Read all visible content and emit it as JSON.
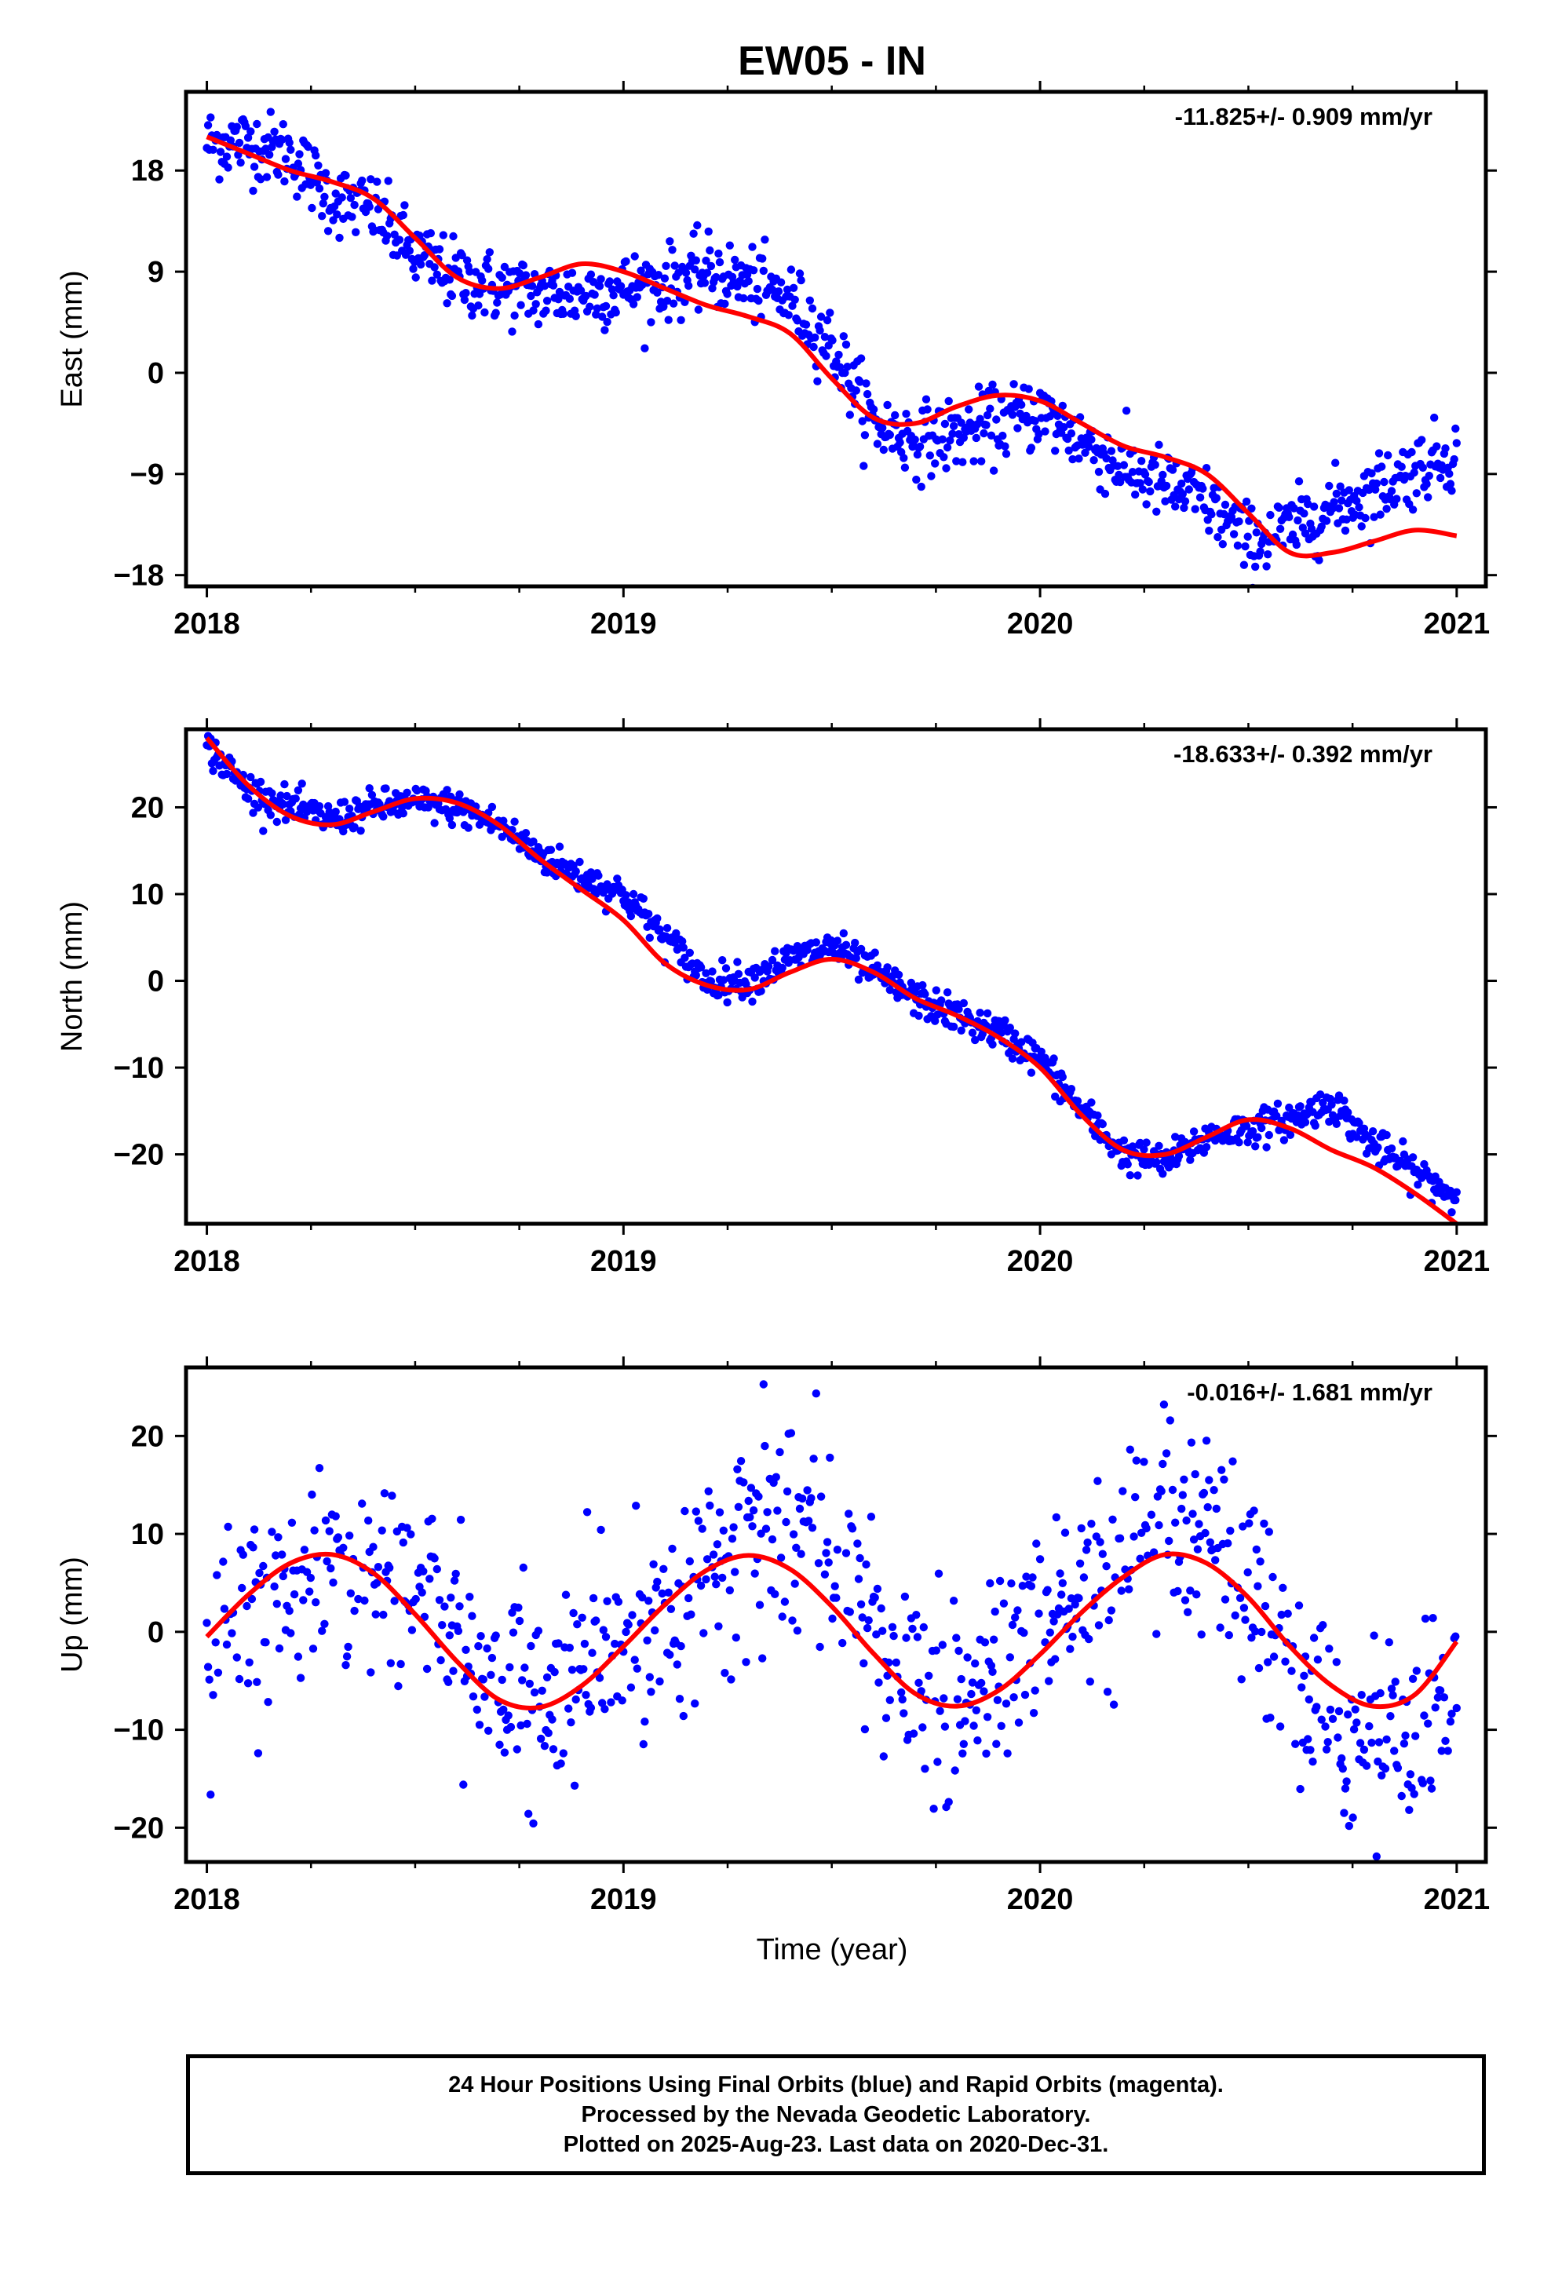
{
  "title": "EW05 - IN",
  "xlabel": "Time (year)",
  "footer": {
    "line1": "24 Hour Positions Using Final Orbits (blue) and Rapid Orbits (magenta).",
    "line2": "Processed by the Nevada Geodetic Laboratory.",
    "line3": "Plotted on 2025-Aug-23. Last data on 2020-Dec-31."
  },
  "colors": {
    "observations": "#0000ff",
    "model": "#ff0000",
    "axes": "#000000"
  },
  "chart_data": [
    {
      "type": "scatter",
      "ylabel": "East (mm)",
      "rate_label": "-11.825+/- 0.909 mm/yr",
      "xlim": [
        2017.95,
        2021.07
      ],
      "ylim": [
        -19,
        25
      ],
      "xticks": [
        "2018",
        "2019",
        "2020",
        "2021"
      ],
      "yticks": [
        -18,
        -9,
        0,
        9,
        18
      ],
      "grid": false,
      "series": [
        {
          "kind": "points",
          "color": "#0000ff",
          "x": [
            2018.0,
            2018.1,
            2018.2,
            2018.3,
            2018.4,
            2018.5,
            2018.6,
            2018.7,
            2018.8,
            2018.9,
            2019.0,
            2019.1,
            2019.2,
            2019.3,
            2019.4,
            2019.5,
            2019.6,
            2019.7,
            2019.8,
            2019.9,
            2020.0,
            2020.1,
            2020.2,
            2020.3,
            2020.4,
            2020.5,
            2020.6,
            2020.7,
            2020.8,
            2020.9,
            2021.0
          ],
          "y": [
            20.5,
            20.5,
            19.5,
            15.5,
            14.5,
            10.5,
            8.5,
            7.5,
            7.0,
            7.0,
            7.5,
            8.0,
            9.0,
            8.0,
            6.5,
            2.5,
            -4.5,
            -6.0,
            -5.5,
            -4.5,
            -3.5,
            -6.0,
            -8.5,
            -10.0,
            -11.5,
            -15.0,
            -14.0,
            -12.0,
            -10.5,
            -8.5,
            -7.0
          ],
          "spread": 1.6
        },
        {
          "kind": "model",
          "color": "#ff0000",
          "x": [
            2018.0,
            2018.1,
            2018.2,
            2018.3,
            2018.4,
            2018.5,
            2018.6,
            2018.7,
            2018.8,
            2018.9,
            2019.0,
            2019.1,
            2019.2,
            2019.3,
            2019.4,
            2019.5,
            2019.6,
            2019.7,
            2019.8,
            2019.9,
            2020.0,
            2020.1,
            2020.2,
            2020.3,
            2020.4,
            2020.5,
            2020.6,
            2020.7,
            2020.8,
            2020.9,
            2021.0
          ],
          "y": [
            21.0,
            19.5,
            18.0,
            17.0,
            15.5,
            12.0,
            8.5,
            7.5,
            8.5,
            9.7,
            9.0,
            7.5,
            6.0,
            5.0,
            3.5,
            -0.5,
            -4.0,
            -4.5,
            -3.0,
            -2.0,
            -2.5,
            -4.5,
            -6.5,
            -7.5,
            -9.0,
            -12.5,
            -16.0,
            -16.0,
            -15.0,
            -14.0,
            -14.5
          ]
        }
      ]
    },
    {
      "type": "scatter",
      "ylabel": "North (mm)",
      "rate_label": "-18.633+/- 0.392 mm/yr",
      "xlim": [
        2017.95,
        2021.07
      ],
      "ylim": [
        -28,
        29
      ],
      "xticks": [
        "2018",
        "2019",
        "2020",
        "2021"
      ],
      "yticks": [
        -20,
        -10,
        0,
        10,
        20
      ],
      "grid": false,
      "series": [
        {
          "kind": "points",
          "color": "#0000ff",
          "x": [
            2018.0,
            2018.1,
            2018.2,
            2018.3,
            2018.4,
            2018.5,
            2018.6,
            2018.7,
            2018.8,
            2018.9,
            2019.0,
            2019.1,
            2019.2,
            2019.3,
            2019.4,
            2019.5,
            2019.6,
            2019.7,
            2019.8,
            2019.9,
            2020.0,
            2020.1,
            2020.2,
            2020.3,
            2020.4,
            2020.5,
            2020.6,
            2020.7,
            2020.8,
            2020.9,
            2021.0
          ],
          "y": [
            27.0,
            22.0,
            20.0,
            18.5,
            20.0,
            20.5,
            20.0,
            18.0,
            14.5,
            12.0,
            10.0,
            5.0,
            0.0,
            0.0,
            2.5,
            4.0,
            1.0,
            -2.0,
            -4.0,
            -6.0,
            -9.0,
            -15.0,
            -20.0,
            -21.0,
            -18.0,
            -17.0,
            -16.0,
            -14.0,
            -19.0,
            -22.0,
            -25.0
          ],
          "spread": 1.0
        },
        {
          "kind": "model",
          "color": "#ff0000",
          "x": [
            2018.0,
            2018.1,
            2018.2,
            2018.3,
            2018.4,
            2018.5,
            2018.6,
            2018.7,
            2018.8,
            2018.9,
            2019.0,
            2019.1,
            2019.2,
            2019.3,
            2019.4,
            2019.5,
            2019.6,
            2019.7,
            2019.8,
            2019.9,
            2020.0,
            2020.1,
            2020.2,
            2020.3,
            2020.4,
            2020.5,
            2020.6,
            2020.7,
            2020.8,
            2020.9,
            2021.0
          ],
          "y": [
            28.0,
            22.5,
            19.0,
            18.0,
            19.5,
            21.0,
            20.5,
            18.0,
            14.0,
            10.5,
            7.0,
            2.0,
            -0.5,
            -1.0,
            1.0,
            2.5,
            1.0,
            -2.0,
            -4.0,
            -6.5,
            -10.0,
            -15.5,
            -19.5,
            -20.0,
            -18.0,
            -16.0,
            -17.0,
            -19.5,
            -21.5,
            -24.5,
            -28.0
          ]
        }
      ]
    },
    {
      "type": "scatter",
      "ylabel": "Up (mm)",
      "rate_label": "-0.016+/- 1.681 mm/yr",
      "xlim": [
        2017.95,
        2021.07
      ],
      "ylim": [
        -23.5,
        27
      ],
      "xticks": [
        "2018",
        "2019",
        "2020",
        "2021"
      ],
      "yticks": [
        -20,
        -10,
        0,
        10,
        20
      ],
      "grid": false,
      "series": [
        {
          "kind": "points",
          "color": "#0000ff",
          "x": [
            2018.0,
            2018.1,
            2018.2,
            2018.3,
            2018.4,
            2018.5,
            2018.6,
            2018.7,
            2018.8,
            2018.9,
            2019.0,
            2019.1,
            2019.2,
            2019.3,
            2019.4,
            2019.5,
            2019.6,
            2019.7,
            2019.8,
            2019.9,
            2020.0,
            2020.1,
            2020.2,
            2020.3,
            2020.4,
            2020.5,
            2020.6,
            2020.7,
            2020.8,
            2020.9,
            2021.0
          ],
          "y": [
            -1.0,
            0.0,
            3.0,
            5.0,
            6.0,
            5.0,
            0.0,
            -6.0,
            -8.0,
            -5.0,
            -1.0,
            2.0,
            6.0,
            10.0,
            12.0,
            8.0,
            0.0,
            -6.0,
            -8.0,
            -4.0,
            0.0,
            3.0,
            6.0,
            9.0,
            9.0,
            4.0,
            -4.0,
            -10.0,
            -11.0,
            -9.0,
            -6.0
          ],
          "spread": 5.0
        },
        {
          "kind": "model",
          "color": "#ff0000",
          "x": [
            2018.0,
            2018.1,
            2018.2,
            2018.3,
            2018.4,
            2018.5,
            2018.6,
            2018.7,
            2018.8,
            2018.9,
            2019.0,
            2019.1,
            2019.2,
            2019.3,
            2019.4,
            2019.5,
            2019.6,
            2019.7,
            2019.8,
            2019.9,
            2020.0,
            2020.1,
            2020.2,
            2020.3,
            2020.4,
            2020.5,
            2020.6,
            2020.7,
            2020.8,
            2020.9,
            2021.0
          ],
          "y": [
            -0.5,
            3.8,
            7.0,
            7.9,
            6.0,
            1.8,
            -3.0,
            -6.9,
            -7.7,
            -5.5,
            -1.5,
            2.8,
            6.3,
            7.8,
            6.4,
            2.6,
            -2.2,
            -6.3,
            -7.6,
            -6.0,
            -2.3,
            2.0,
            5.6,
            7.9,
            7.0,
            3.5,
            -1.5,
            -5.5,
            -7.6,
            -6.4,
            -1.0
          ]
        }
      ]
    }
  ]
}
